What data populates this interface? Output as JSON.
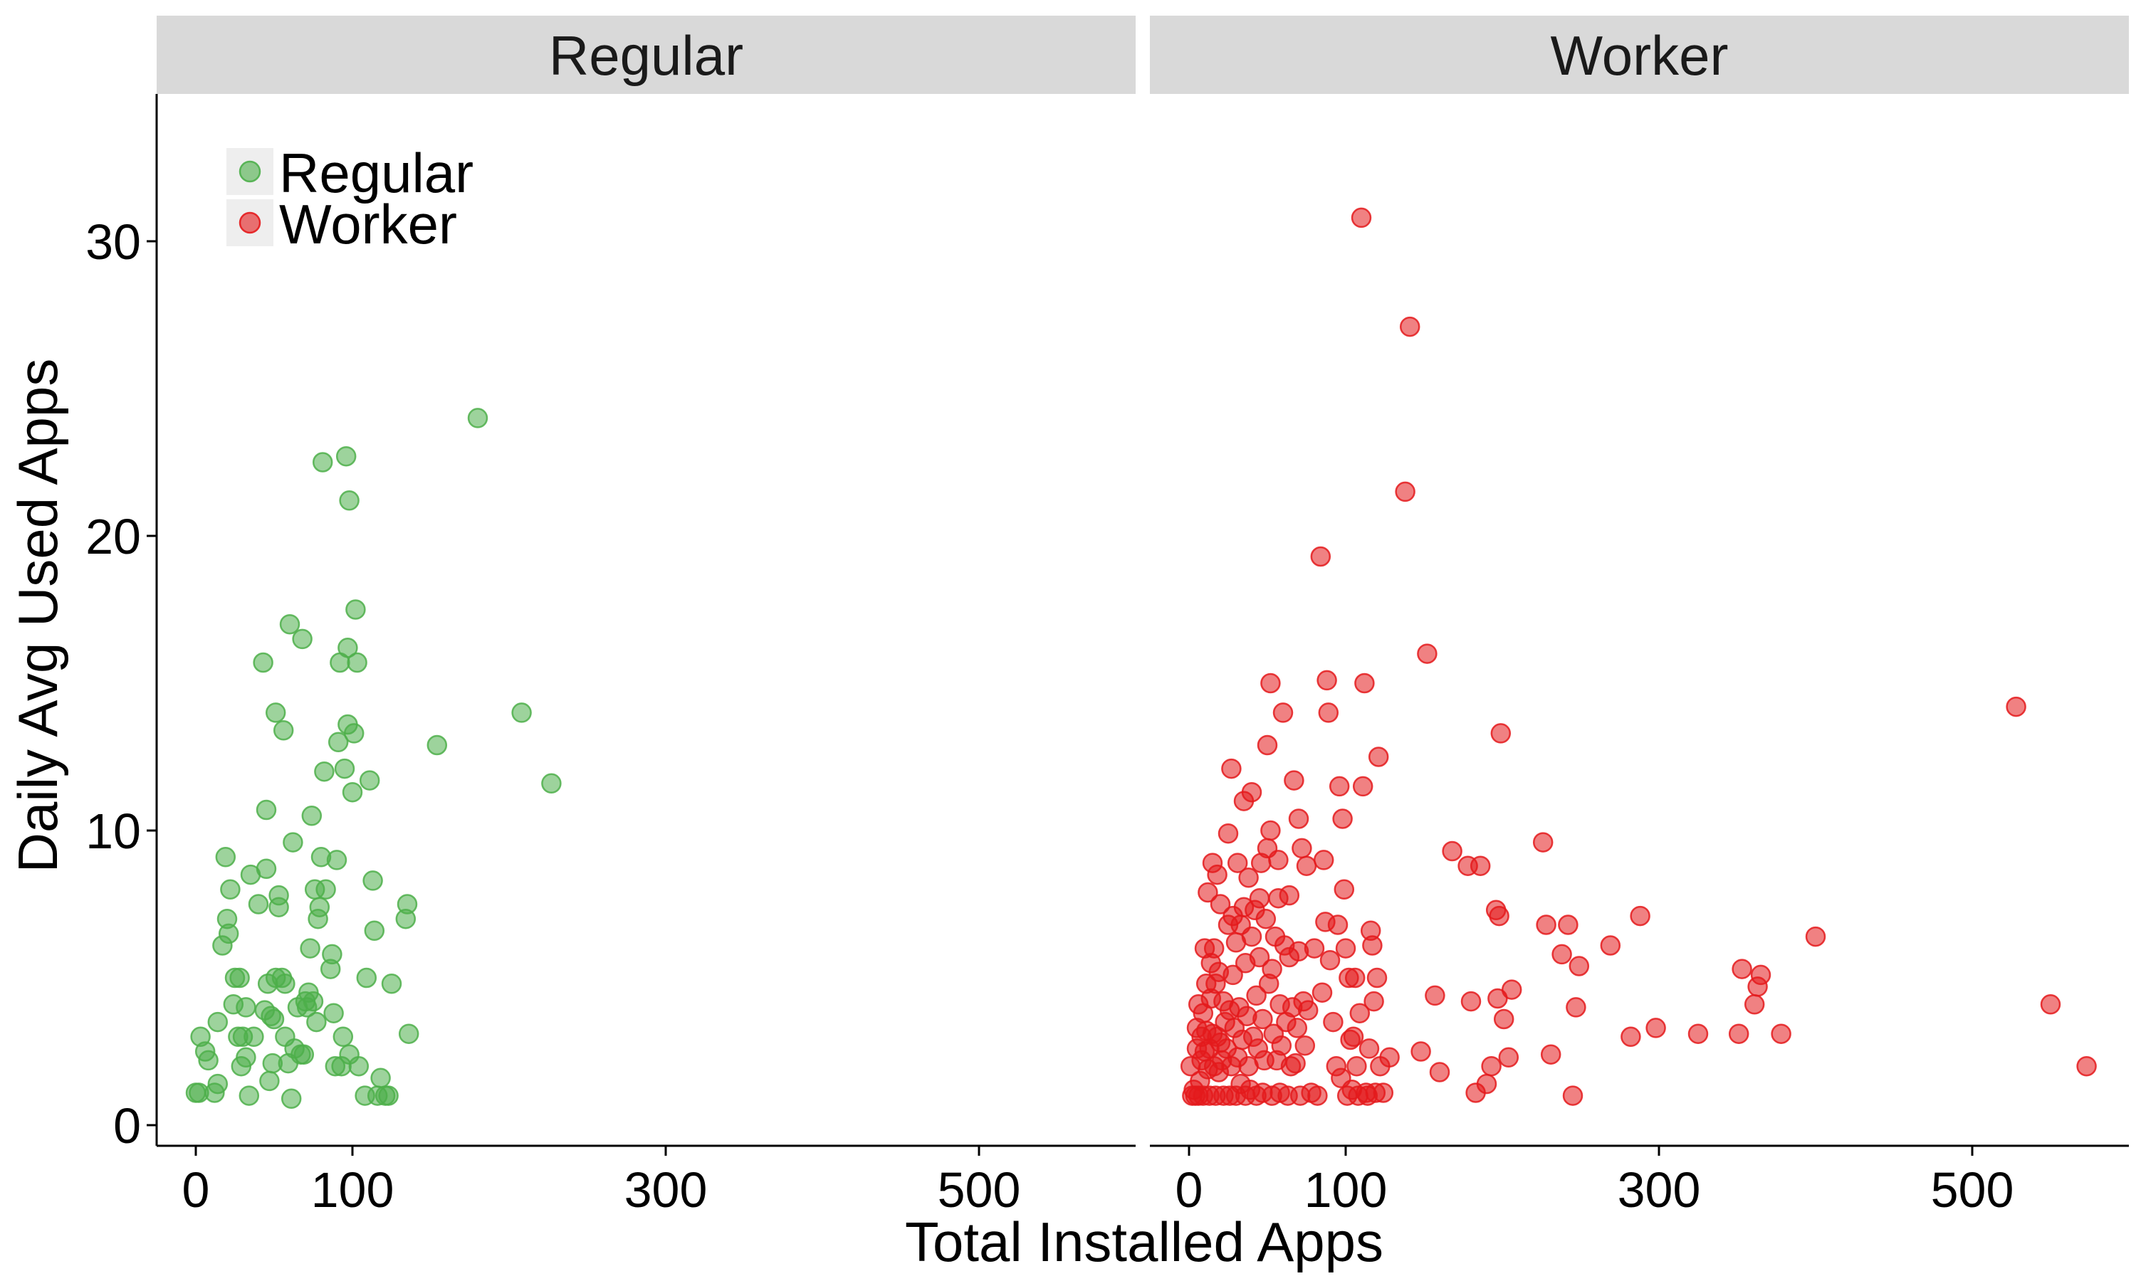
{
  "chart_data": {
    "type": "scatter",
    "xlabel": "Total Installed Apps",
    "ylabel": "Daily Avg Used Apps",
    "xlim": [
      -25,
      600
    ],
    "ylim": [
      -0.7,
      35
    ],
    "x_ticks": [
      0,
      100,
      300,
      500
    ],
    "y_ticks": [
      0,
      10,
      20,
      30
    ],
    "grid": false,
    "legend_placement": "top-left",
    "legend": [
      {
        "name": "Regular",
        "color": "#4DAF4A"
      },
      {
        "name": "Worker",
        "color": "#E41A1C"
      }
    ],
    "panels": [
      {
        "title": "Regular",
        "color": "#4DAF4A",
        "points": [
          [
            0,
            1.1
          ],
          [
            2,
            1.1
          ],
          [
            3,
            3
          ],
          [
            6,
            2.5
          ],
          [
            8,
            2.2
          ],
          [
            12,
            1.1
          ],
          [
            14,
            1.4
          ],
          [
            14,
            3.5
          ],
          [
            17,
            6.1
          ],
          [
            19,
            9.1
          ],
          [
            20,
            7
          ],
          [
            21,
            6.5
          ],
          [
            22,
            8
          ],
          [
            24,
            4.1
          ],
          [
            25,
            5
          ],
          [
            27,
            3
          ],
          [
            28,
            5
          ],
          [
            29,
            2
          ],
          [
            30,
            3
          ],
          [
            32,
            4
          ],
          [
            32,
            2.3
          ],
          [
            34,
            1
          ],
          [
            35,
            8.5
          ],
          [
            37,
            3
          ],
          [
            40,
            7.5
          ],
          [
            43,
            15.7
          ],
          [
            44,
            3.9
          ],
          [
            45,
            8.7
          ],
          [
            45,
            10.7
          ],
          [
            46,
            4.8
          ],
          [
            47,
            1.5
          ],
          [
            48,
            3.7
          ],
          [
            49,
            2.1
          ],
          [
            50,
            3.6
          ],
          [
            51,
            5
          ],
          [
            51,
            14
          ],
          [
            53,
            7.8
          ],
          [
            53,
            7.4
          ],
          [
            55,
            5
          ],
          [
            56,
            13.4
          ],
          [
            57,
            3
          ],
          [
            57,
            4.8
          ],
          [
            59,
            2.1
          ],
          [
            60,
            17
          ],
          [
            61,
            0.9
          ],
          [
            62,
            9.6
          ],
          [
            63,
            2.6
          ],
          [
            65,
            4
          ],
          [
            67,
            2.4
          ],
          [
            68,
            16.5
          ],
          [
            69,
            2.4
          ],
          [
            70,
            4.2
          ],
          [
            71,
            4
          ],
          [
            72,
            4.5
          ],
          [
            73,
            6
          ],
          [
            74,
            10.5
          ],
          [
            75,
            4.2
          ],
          [
            76,
            8
          ],
          [
            77,
            3.5
          ],
          [
            78,
            7
          ],
          [
            79,
            7.4
          ],
          [
            80,
            9.1
          ],
          [
            81,
            22.5
          ],
          [
            82,
            12
          ],
          [
            83,
            8
          ],
          [
            86,
            5.3
          ],
          [
            87,
            5.8
          ],
          [
            88,
            3.8
          ],
          [
            89,
            2
          ],
          [
            90,
            9
          ],
          [
            91,
            13
          ],
          [
            92,
            15.7
          ],
          [
            93,
            2
          ],
          [
            94,
            3
          ],
          [
            95,
            12.1
          ],
          [
            96,
            22.7
          ],
          [
            97,
            16.2
          ],
          [
            97,
            13.6
          ],
          [
            98,
            21.2
          ],
          [
            98,
            2.4
          ],
          [
            100,
            11.3
          ],
          [
            101,
            13.3
          ],
          [
            102,
            17.5
          ],
          [
            103,
            15.7
          ],
          [
            104,
            2
          ],
          [
            108,
            1
          ],
          [
            109,
            5
          ],
          [
            111,
            11.7
          ],
          [
            113,
            8.3
          ],
          [
            114,
            6.6
          ],
          [
            116,
            1
          ],
          [
            118,
            1.6
          ],
          [
            121,
            1
          ],
          [
            123,
            1
          ],
          [
            125,
            4.8
          ],
          [
            134,
            7
          ],
          [
            135,
            7.5
          ],
          [
            136,
            3.1
          ],
          [
            154,
            12.9
          ],
          [
            180,
            24
          ],
          [
            208,
            14
          ],
          [
            227,
            11.6
          ]
        ]
      },
      {
        "title": "Worker",
        "color": "#E41A1C",
        "points": [
          [
            1,
            2
          ],
          [
            2,
            1
          ],
          [
            3,
            1.2
          ],
          [
            4,
            1
          ],
          [
            5,
            2.6
          ],
          [
            5,
            3.3
          ],
          [
            6,
            1
          ],
          [
            6,
            4.1
          ],
          [
            7,
            1.5
          ],
          [
            8,
            2.2
          ],
          [
            8,
            3
          ],
          [
            9,
            3.8
          ],
          [
            9,
            1
          ],
          [
            10,
            2.5
          ],
          [
            10,
            6
          ],
          [
            11,
            3.2
          ],
          [
            11,
            4.8
          ],
          [
            12,
            1.9
          ],
          [
            12,
            7.9
          ],
          [
            13,
            1
          ],
          [
            13,
            2.6
          ],
          [
            14,
            5.5
          ],
          [
            14,
            4.3
          ],
          [
            15,
            3.1
          ],
          [
            15,
            8.9
          ],
          [
            16,
            2
          ],
          [
            16,
            6
          ],
          [
            17,
            1
          ],
          [
            17,
            4.8
          ],
          [
            18,
            3
          ],
          [
            18,
            8.5
          ],
          [
            19,
            1.8
          ],
          [
            19,
            5.2
          ],
          [
            20,
            2.8
          ],
          [
            20,
            7.5
          ],
          [
            21,
            2.2
          ],
          [
            22,
            1
          ],
          [
            22,
            4.2
          ],
          [
            23,
            3.5
          ],
          [
            24,
            2.6
          ],
          [
            25,
            6.8
          ],
          [
            25,
            9.9
          ],
          [
            26,
            1
          ],
          [
            26,
            3.9
          ],
          [
            27,
            2
          ],
          [
            27,
            12.1
          ],
          [
            28,
            5.1
          ],
          [
            28,
            7.1
          ],
          [
            29,
            3.3
          ],
          [
            30,
            1
          ],
          [
            30,
            6.2
          ],
          [
            31,
            2.3
          ],
          [
            31,
            8.9
          ],
          [
            32,
            4
          ],
          [
            33,
            1.4
          ],
          [
            33,
            6.8
          ],
          [
            34,
            2.9
          ],
          [
            35,
            11
          ],
          [
            35,
            7.4
          ],
          [
            36,
            1
          ],
          [
            36,
            5.5
          ],
          [
            37,
            3.7
          ],
          [
            38,
            2
          ],
          [
            38,
            8.4
          ],
          [
            39,
            1.2
          ],
          [
            40,
            6.4
          ],
          [
            40,
            11.3
          ],
          [
            41,
            3
          ],
          [
            42,
            7.3
          ],
          [
            43,
            1
          ],
          [
            43,
            4.4
          ],
          [
            44,
            2.6
          ],
          [
            45,
            5.7
          ],
          [
            45,
            7.7
          ],
          [
            46,
            8.9
          ],
          [
            47,
            1.1
          ],
          [
            47,
            3.6
          ],
          [
            48,
            2.2
          ],
          [
            49,
            7
          ],
          [
            50,
            9.4
          ],
          [
            50,
            12.9
          ],
          [
            51,
            4.8
          ],
          [
            52,
            10
          ],
          [
            52,
            15
          ],
          [
            53,
            1
          ],
          [
            53,
            5.3
          ],
          [
            54,
            3.1
          ],
          [
            55,
            6.4
          ],
          [
            56,
            2.2
          ],
          [
            57,
            7.7
          ],
          [
            57,
            9
          ],
          [
            58,
            1.1
          ],
          [
            58,
            4.1
          ],
          [
            59,
            2.7
          ],
          [
            60,
            14
          ],
          [
            61,
            6.1
          ],
          [
            62,
            3.5
          ],
          [
            63,
            1
          ],
          [
            64,
            5.7
          ],
          [
            64,
            7.8
          ],
          [
            65,
            2
          ],
          [
            66,
            4
          ],
          [
            67,
            11.7
          ],
          [
            68,
            2.1
          ],
          [
            69,
            3.3
          ],
          [
            70,
            10.4
          ],
          [
            70,
            5.9
          ],
          [
            71,
            1
          ],
          [
            72,
            9.4
          ],
          [
            73,
            4.2
          ],
          [
            74,
            2.7
          ],
          [
            75,
            8.8
          ],
          [
            76,
            3.9
          ],
          [
            78,
            1.1
          ],
          [
            80,
            6
          ],
          [
            82,
            1
          ],
          [
            84,
            19.3
          ],
          [
            85,
            4.5
          ],
          [
            86,
            9
          ],
          [
            87,
            6.9
          ],
          [
            88,
            15.1
          ],
          [
            89,
            14
          ],
          [
            90,
            5.6
          ],
          [
            92,
            3.5
          ],
          [
            94,
            2
          ],
          [
            95,
            6.8
          ],
          [
            96,
            11.5
          ],
          [
            97,
            1.6
          ],
          [
            98,
            10.4
          ],
          [
            99,
            8
          ],
          [
            100,
            6
          ],
          [
            101,
            1
          ],
          [
            102,
            5
          ],
          [
            103,
            2.9
          ],
          [
            104,
            1.2
          ],
          [
            105,
            3
          ],
          [
            106,
            5
          ],
          [
            107,
            2
          ],
          [
            108,
            1
          ],
          [
            109,
            3.8
          ],
          [
            110,
            30.8
          ],
          [
            111,
            11.5
          ],
          [
            112,
            15
          ],
          [
            113,
            1.1
          ],
          [
            114,
            1
          ],
          [
            115,
            2.6
          ],
          [
            116,
            6.6
          ],
          [
            117,
            6.1
          ],
          [
            118,
            4.2
          ],
          [
            119,
            1.1
          ],
          [
            120,
            5
          ],
          [
            121,
            12.5
          ],
          [
            122,
            2
          ],
          [
            124,
            1.1
          ],
          [
            128,
            2.3
          ],
          [
            138,
            21.5
          ],
          [
            141,
            27.1
          ],
          [
            148,
            2.5
          ],
          [
            152,
            16
          ],
          [
            157,
            4.4
          ],
          [
            160,
            1.8
          ],
          [
            168,
            9.3
          ],
          [
            178,
            8.8
          ],
          [
            180,
            4.2
          ],
          [
            183,
            1.1
          ],
          [
            186,
            8.8
          ],
          [
            190,
            1.4
          ],
          [
            193,
            2
          ],
          [
            196,
            7.3
          ],
          [
            197,
            4.3
          ],
          [
            198,
            7.1
          ],
          [
            199,
            13.3
          ],
          [
            201,
            3.6
          ],
          [
            204,
            2.3
          ],
          [
            206,
            4.6
          ],
          [
            226,
            9.6
          ],
          [
            228,
            6.8
          ],
          [
            231,
            2.4
          ],
          [
            238,
            5.8
          ],
          [
            242,
            6.8
          ],
          [
            245,
            1
          ],
          [
            247,
            4
          ],
          [
            249,
            5.4
          ],
          [
            269,
            6.1
          ],
          [
            282,
            3
          ],
          [
            288,
            7.1
          ],
          [
            298,
            3.3
          ],
          [
            325,
            3.1
          ],
          [
            351,
            3.1
          ],
          [
            353,
            5.3
          ],
          [
            361,
            4.1
          ],
          [
            363,
            4.7
          ],
          [
            365,
            5.1
          ],
          [
            378,
            3.1
          ],
          [
            400,
            6.4
          ],
          [
            528,
            14.2
          ],
          [
            550,
            4.1
          ],
          [
            573,
            2
          ]
        ]
      }
    ]
  }
}
